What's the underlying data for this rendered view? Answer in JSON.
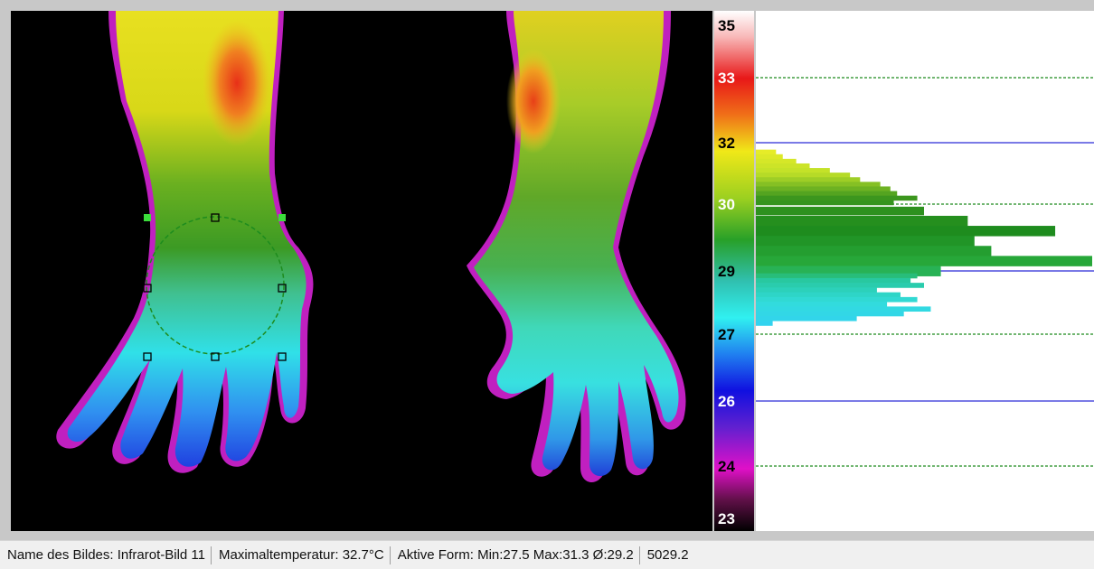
{
  "thermogram": {
    "scale_ticks": [
      {
        "label": "35",
        "value": 35,
        "color": "#000000"
      },
      {
        "label": "33",
        "value": 33,
        "color": "#ffffff"
      },
      {
        "label": "32",
        "value": 32,
        "color": "#000000"
      },
      {
        "label": "30",
        "value": 30,
        "color": "#ffffff"
      },
      {
        "label": "29",
        "value": 29,
        "color": "#000000"
      },
      {
        "label": "27",
        "value": 27,
        "color": "#000000"
      },
      {
        "label": "26",
        "value": 26,
        "color": "#ffffff"
      },
      {
        "label": "24",
        "value": 24,
        "color": "#000000"
      },
      {
        "label": "23",
        "value": 23,
        "color": "#ffffff"
      }
    ],
    "scale_min": 23,
    "scale_max": 35
  },
  "histogram": {
    "solid_lines": [
      32,
      29,
      26
    ],
    "dashed_lines": [
      33,
      30,
      27,
      24
    ],
    "bars": [
      {
        "t": 31.7,
        "f": 0.06
      },
      {
        "t": 31.55,
        "f": 0.08
      },
      {
        "t": 31.4,
        "f": 0.12
      },
      {
        "t": 31.25,
        "f": 0.16
      },
      {
        "t": 31.1,
        "f": 0.22
      },
      {
        "t": 30.95,
        "f": 0.28
      },
      {
        "t": 30.8,
        "f": 0.31
      },
      {
        "t": 30.65,
        "f": 0.37
      },
      {
        "t": 30.5,
        "f": 0.4
      },
      {
        "t": 30.35,
        "f": 0.42
      },
      {
        "t": 30.2,
        "f": 0.48
      },
      {
        "t": 30.05,
        "f": 0.41
      },
      {
        "t": 29.9,
        "f": 0.5
      },
      {
        "t": 29.75,
        "f": 0.63
      },
      {
        "t": 29.6,
        "f": 0.89
      },
      {
        "t": 29.45,
        "f": 0.65
      },
      {
        "t": 29.3,
        "f": 0.7
      },
      {
        "t": 29.15,
        "f": 1.0
      },
      {
        "t": 29.0,
        "f": 0.55
      },
      {
        "t": 28.85,
        "f": 0.48
      },
      {
        "t": 28.7,
        "f": 0.46
      },
      {
        "t": 28.55,
        "f": 0.5
      },
      {
        "t": 28.4,
        "f": 0.36
      },
      {
        "t": 28.25,
        "f": 0.43
      },
      {
        "t": 28.1,
        "f": 0.48
      },
      {
        "t": 27.95,
        "f": 0.39
      },
      {
        "t": 27.8,
        "f": 0.52
      },
      {
        "t": 27.65,
        "f": 0.44
      },
      {
        "t": 27.5,
        "f": 0.3
      },
      {
        "t": 27.35,
        "f": 0.05
      }
    ]
  },
  "statusbar": {
    "image_name": "Name des Bildes: Infrarot-Bild 11",
    "max_temp": "Maximaltemperatur:  32.7°C",
    "active_shape": "Aktive Form: Min:27.5 Max:31.3 Ø:29.2",
    "value": "5029.2"
  }
}
